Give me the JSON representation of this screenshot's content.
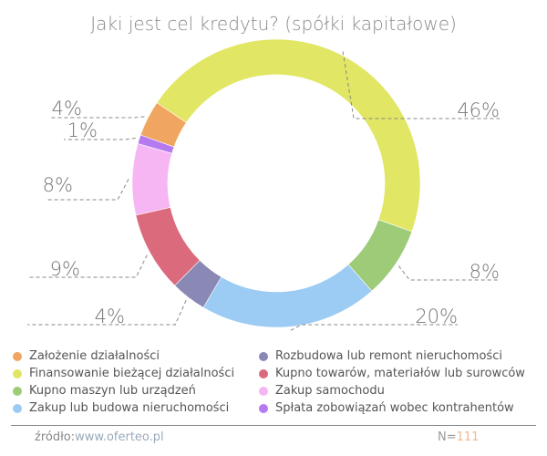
{
  "chart_data": {
    "type": "pie",
    "style": "donut",
    "title": "Jaki jest cel kredytu? (spółki kapitałowe)",
    "slices": [
      {
        "label": "Finansowanie bieżącej działalności",
        "value": 46,
        "display": "46%",
        "color": "#e1e664"
      },
      {
        "label": "Kupno maszyn lub urządzeń",
        "value": 8,
        "display": "8%",
        "color": "#9dcb78"
      },
      {
        "label": "Zakup lub budowa nieruchomości",
        "value": 20,
        "display": "20%",
        "color": "#9ccbf3"
      },
      {
        "label": "Rozbudowa lub remont nieruchomości",
        "value": 4,
        "display": "4%",
        "color": "#8a88b4"
      },
      {
        "label": "Kupno towarów, materiałów lub surowców",
        "value": 9,
        "display": "9%",
        "color": "#db6a7c"
      },
      {
        "label": "Zakup samochodu",
        "value": 8,
        "display": "8%",
        "color": "#f6b6f3"
      },
      {
        "label": "Spłata zobowiązań wobec kontrahentów",
        "value": 1,
        "display": "1%",
        "color": "#b57af0"
      },
      {
        "label": "Założenie działalności",
        "value": 4,
        "display": "4%",
        "color": "#f0a660"
      }
    ],
    "legend": [
      "Założenie działalności",
      "Rozbudowa lub remont nieruchomości",
      "Finansowanie bieżącej działalności",
      "Kupno towarów, materiałów lub surowców",
      "Kupno maszyn lub urządzeń",
      "Zakup samochodu",
      "Zakup lub budowa nieruchomości",
      "Spłata zobowiązań wobec kontrahentów"
    ],
    "legend_placement": "bottom"
  },
  "footer": {
    "source_label": "źródło:",
    "source_url": "www.oferteo.pl",
    "n_label": "N=",
    "n_value": "111"
  }
}
